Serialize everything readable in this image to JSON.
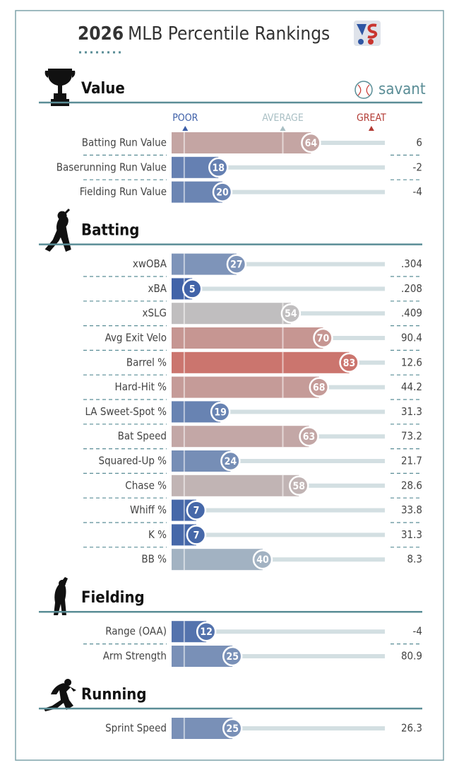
{
  "chart_data": {
    "type": "percentile",
    "title_year": "2026",
    "title": "MLB Percentile Rankings",
    "brand": "savant",
    "scale_labels": [
      "POOR",
      "AVERAGE",
      "GREAT"
    ],
    "xlim": [
      0,
      100
    ],
    "sections": [
      {
        "name": "Value",
        "rows": [
          {
            "label": "Batting Run Value",
            "value": 64,
            "stat": "6"
          },
          {
            "label": "Baserunning Run Value",
            "value": 18,
            "stat": "-2"
          },
          {
            "label": "Fielding Run Value",
            "value": 20,
            "stat": "-4"
          }
        ]
      },
      {
        "name": "Batting",
        "rows": [
          {
            "label": "xwOBA",
            "value": 27,
            "stat": ".304"
          },
          {
            "label": "xBA",
            "value": 5,
            "stat": ".208"
          },
          {
            "label": "xSLG",
            "value": 54,
            "stat": ".409"
          },
          {
            "label": "Avg Exit Velo",
            "value": 70,
            "stat": "90.4"
          },
          {
            "label": "Barrel %",
            "value": 83,
            "stat": "12.6"
          },
          {
            "label": "Hard-Hit %",
            "value": 68,
            "stat": "44.2"
          },
          {
            "label": "LA Sweet-Spot %",
            "value": 19,
            "stat": "31.3"
          },
          {
            "label": "Bat Speed",
            "value": 63,
            "stat": "73.2"
          },
          {
            "label": "Squared-Up %",
            "value": 24,
            "stat": "21.7"
          },
          {
            "label": "Chase %",
            "value": 58,
            "stat": "28.6"
          },
          {
            "label": "Whiff %",
            "value": 7,
            "stat": "33.8"
          },
          {
            "label": "K %",
            "value": 7,
            "stat": "31.3"
          },
          {
            "label": "BB %",
            "value": 40,
            "stat": "8.3"
          }
        ]
      },
      {
        "name": "Fielding",
        "rows": [
          {
            "label": "Range (OAA)",
            "value": 12,
            "stat": "-4"
          },
          {
            "label": "Arm Strength",
            "value": 25,
            "stat": "80.9"
          }
        ]
      },
      {
        "name": "Running",
        "rows": [
          {
            "label": "Sprint Speed",
            "value": 25,
            "stat": "26.3"
          }
        ]
      }
    ]
  }
}
